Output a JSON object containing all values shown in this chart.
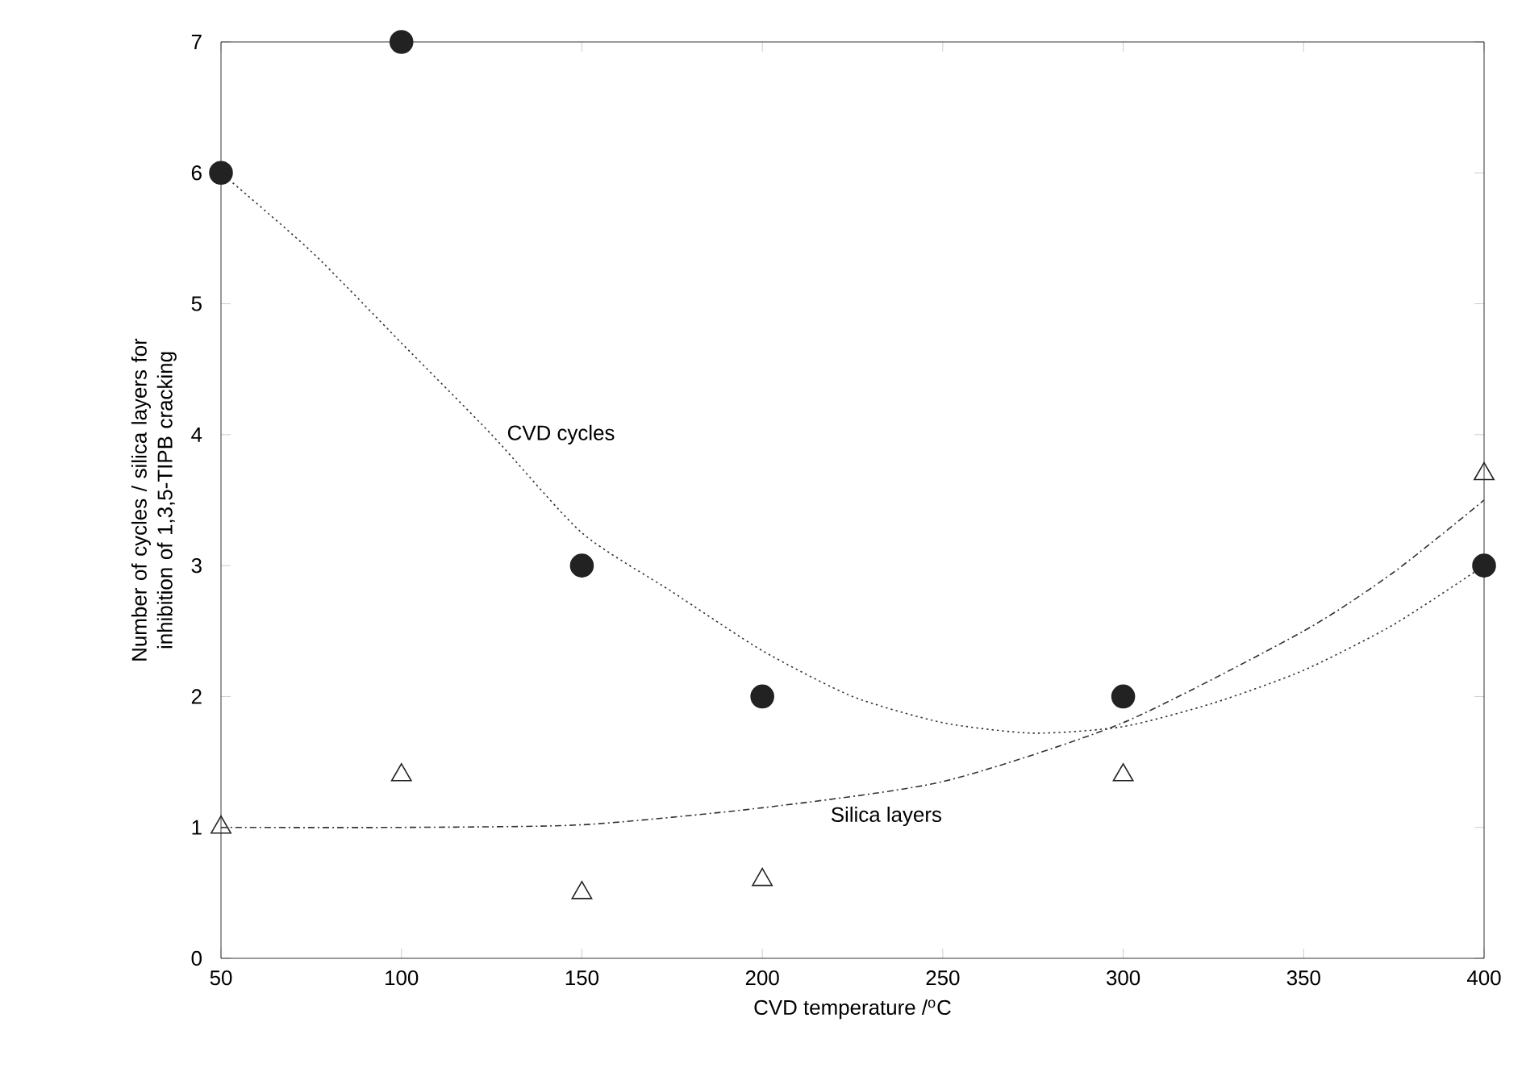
{
  "chart_data": {
    "type": "scatter",
    "xlabel": "CVD temperature /$^{o}$C",
    "ylabel": "Number of cycles / silica layers for inhibition of 1,3,5-TIPB cracking",
    "xlim": [
      50,
      400
    ],
    "ylim": [
      0,
      7
    ],
    "xticks": [
      50,
      100,
      150,
      200,
      250,
      300,
      350,
      400
    ],
    "yticks": [
      0,
      1,
      2,
      3,
      4,
      5,
      6,
      7
    ],
    "grid": false,
    "series": [
      {
        "type": "scatter",
        "marker": "circle",
        "color": "#222222",
        "x": [
          50,
          100,
          150,
          200,
          300,
          400
        ],
        "values": [
          6,
          7,
          3,
          2,
          2,
          3
        ]
      },
      {
        "type": "scatter",
        "marker": "triangle",
        "color": "#222222",
        "x": [
          50,
          100,
          150,
          200,
          300,
          400
        ],
        "values": [
          1.0,
          1.4,
          0.5,
          0.6,
          1.4,
          3.7
        ]
      },
      {
        "type": "line",
        "name": "CVD cycles",
        "line_style": "dotted",
        "color": "#333333",
        "x": [
          50,
          75,
          100,
          125,
          150,
          175,
          200,
          225,
          250,
          275,
          300,
          325,
          350,
          375,
          400
        ],
        "values": [
          6.0,
          5.4,
          4.7,
          4.0,
          3.25,
          2.8,
          2.35,
          2.0,
          1.8,
          1.72,
          1.77,
          1.95,
          2.2,
          2.55,
          3.0
        ]
      },
      {
        "type": "line",
        "name": "Silica layers",
        "line_style": "dashed",
        "color": "#333333",
        "x": [
          50,
          100,
          150,
          200,
          250,
          300,
          350,
          375,
          400
        ],
        "values": [
          1.0,
          1.0,
          1.02,
          1.15,
          1.35,
          1.8,
          2.5,
          2.95,
          3.5
        ]
      }
    ]
  }
}
